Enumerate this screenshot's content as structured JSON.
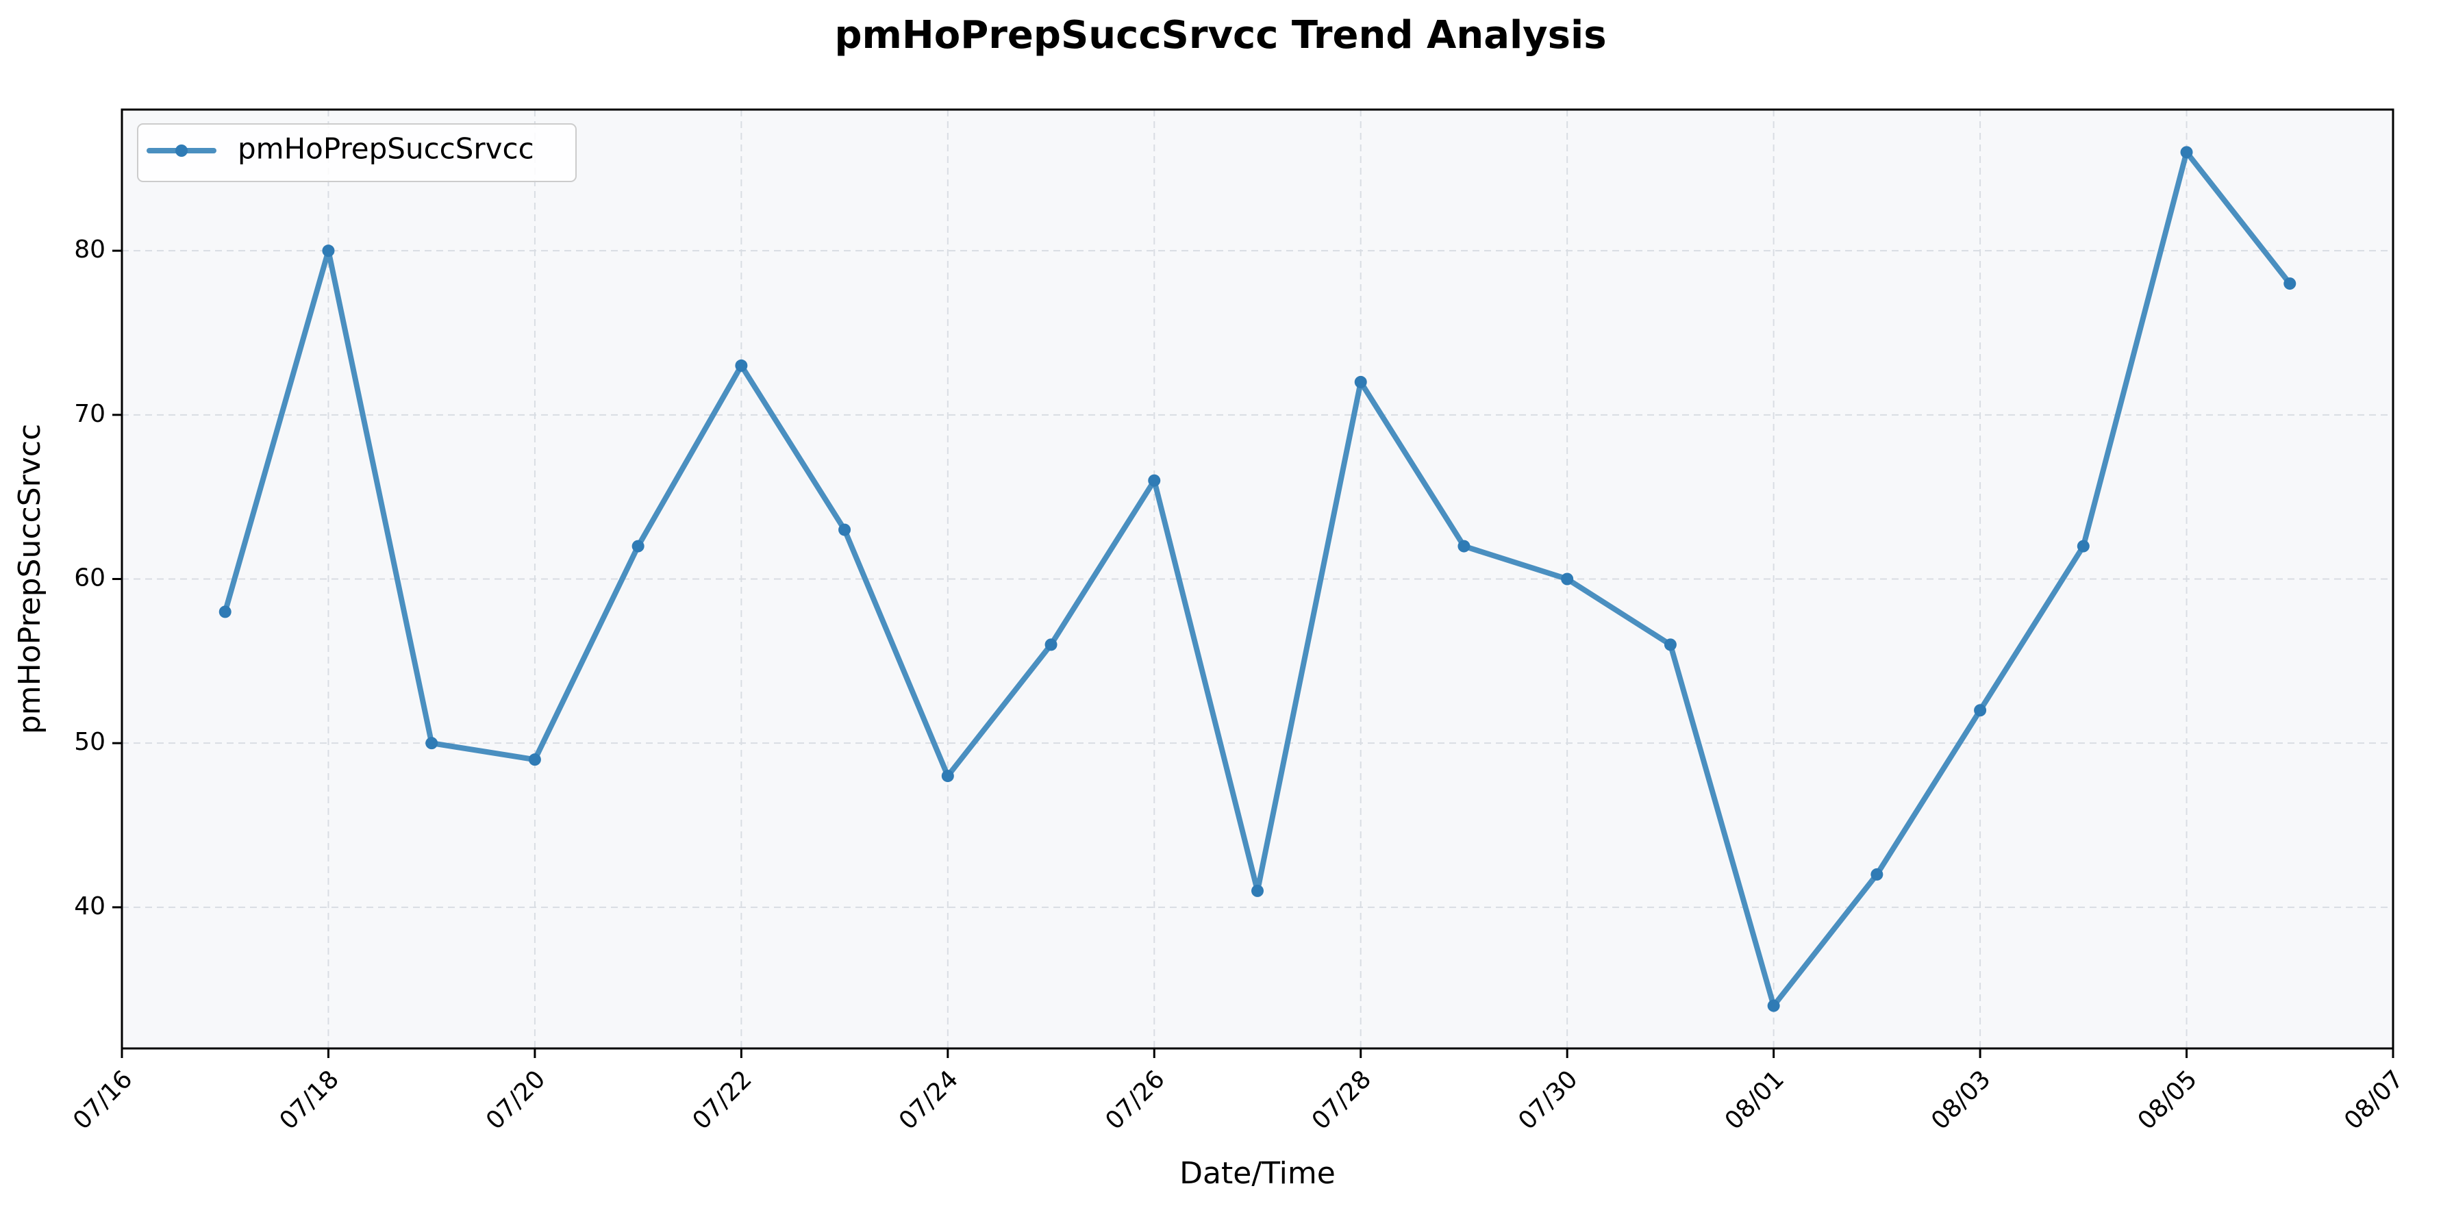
{
  "chart_data": {
    "type": "line",
    "title": "pmHoPrepSuccSrvcc Trend Analysis",
    "xlabel": "Date/Time",
    "ylabel": "pmHoPrepSuccSrvcc",
    "x_ticks": [
      "07/16",
      "07/18",
      "07/20",
      "07/22",
      "07/24",
      "07/26",
      "07/28",
      "07/30",
      "08/01",
      "08/03",
      "08/05",
      "08/07"
    ],
    "y_ticks": [
      40,
      50,
      60,
      70,
      80
    ],
    "xlim": [
      "07/16",
      "08/07"
    ],
    "ylim": [
      31.4,
      88.6
    ],
    "grid": true,
    "legend_position": "upper-left",
    "colors": {
      "line": "#4a8fc0",
      "marker": "#2f7bb5",
      "plot_background": "#f7f8fa",
      "grid": "#d9dde3"
    },
    "series": [
      {
        "name": "pmHoPrepSuccSrvcc",
        "x": [
          "07/17",
          "07/18",
          "07/19",
          "07/20",
          "07/21",
          "07/22",
          "07/23",
          "07/24",
          "07/25",
          "07/26",
          "07/27",
          "07/28",
          "07/29",
          "07/30",
          "07/31",
          "08/01",
          "08/02",
          "08/03",
          "08/04",
          "08/05",
          "08/06"
        ],
        "values": [
          58,
          80,
          50,
          49,
          62,
          73,
          63,
          48,
          56,
          66,
          41,
          72,
          62,
          60,
          56,
          34,
          42,
          52,
          62,
          86,
          78
        ]
      }
    ]
  }
}
